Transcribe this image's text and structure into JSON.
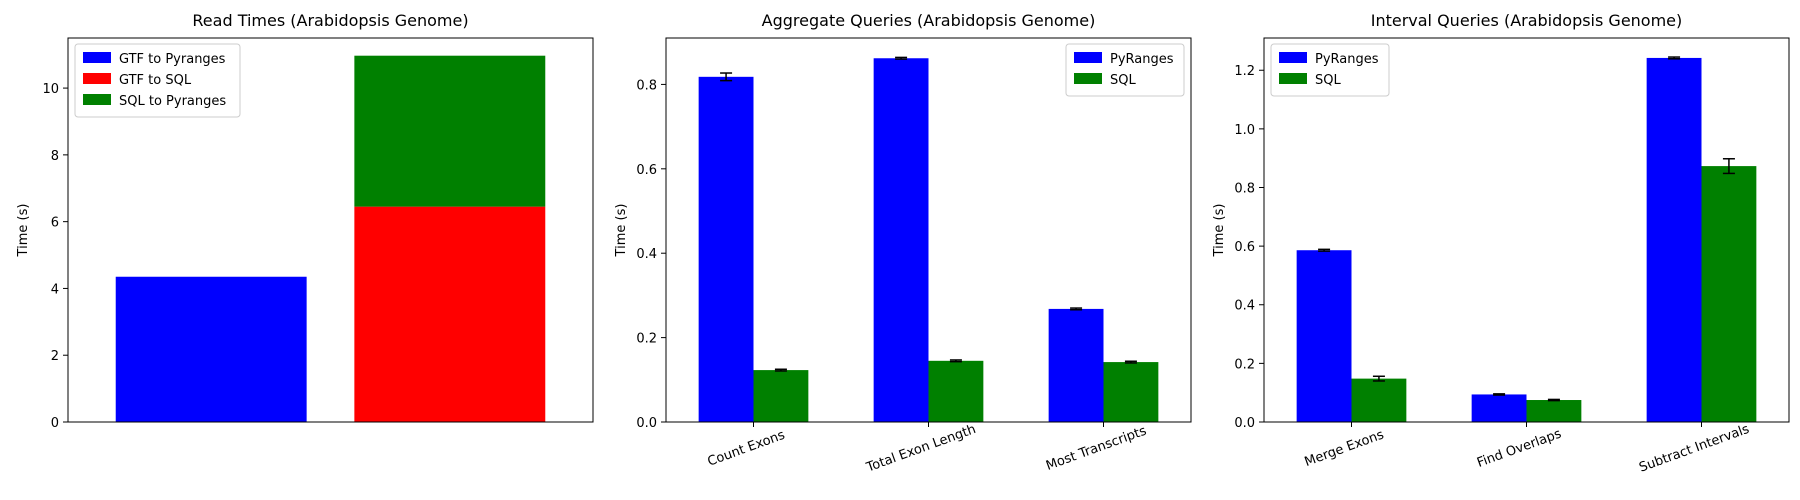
{
  "chart_data": [
    {
      "type": "bar",
      "title": "Read Times (Arabidopsis Genome)",
      "xlabel": "",
      "ylabel": "Time (s)",
      "ylim": [
        0,
        11.5
      ],
      "yticks": [
        0,
        2,
        4,
        6,
        8,
        10
      ],
      "legend_position": "top-left",
      "stacked": true,
      "categories": [
        "GTF to Pyranges",
        "GTF to SQL"
      ],
      "bars": [
        {
          "segments": [
            {
              "series": "GTF to Pyranges",
              "value": 4.35
            }
          ]
        },
        {
          "segments": [
            {
              "series": "GTF to SQL",
              "value": 6.45
            },
            {
              "series": "SQL to Pyranges",
              "value": 4.52
            }
          ]
        }
      ],
      "series": [
        {
          "name": "GTF to Pyranges",
          "color": "#0000ff"
        },
        {
          "name": "GTF to SQL",
          "color": "#ff0000"
        },
        {
          "name": "SQL to Pyranges",
          "color": "#008000"
        }
      ],
      "show_xticklabels": false
    },
    {
      "type": "bar",
      "title": "Aggregate Queries (Arabidopsis Genome)",
      "xlabel": "",
      "ylabel": "Time (s)",
      "ylim": [
        0,
        0.91
      ],
      "yticks": [
        0.0,
        0.2,
        0.4,
        0.6,
        0.8
      ],
      "legend_position": "top-right",
      "categories": [
        "Count Exons",
        "Total Exon Length",
        "Most Transcripts"
      ],
      "series": [
        {
          "name": "PyRanges",
          "color": "#0000ff",
          "values": [
            0.818,
            0.862,
            0.268
          ],
          "errors": [
            0.009,
            0.002,
            0.002
          ]
        },
        {
          "name": "SQL",
          "color": "#008000",
          "values": [
            0.123,
            0.145,
            0.142
          ],
          "errors": [
            0.002,
            0.002,
            0.002
          ]
        }
      ]
    },
    {
      "type": "bar",
      "title": "Interval Queries (Arabidopsis Genome)",
      "xlabel": "",
      "ylabel": "Time (s)",
      "ylim": [
        0,
        1.31
      ],
      "yticks": [
        0.0,
        0.2,
        0.4,
        0.6,
        0.8,
        1.0,
        1.2
      ],
      "legend_position": "top-left",
      "categories": [
        "Merge Exons",
        "Find Overlaps",
        "Subtract Intervals"
      ],
      "series": [
        {
          "name": "PyRanges",
          "color": "#0000ff",
          "values": [
            0.586,
            0.094,
            1.242
          ],
          "errors": [
            0.003,
            0.002,
            0.003
          ]
        },
        {
          "name": "SQL",
          "color": "#008000",
          "values": [
            0.148,
            0.075,
            0.873
          ],
          "errors": [
            0.008,
            0.002,
            0.025
          ]
        }
      ]
    }
  ]
}
